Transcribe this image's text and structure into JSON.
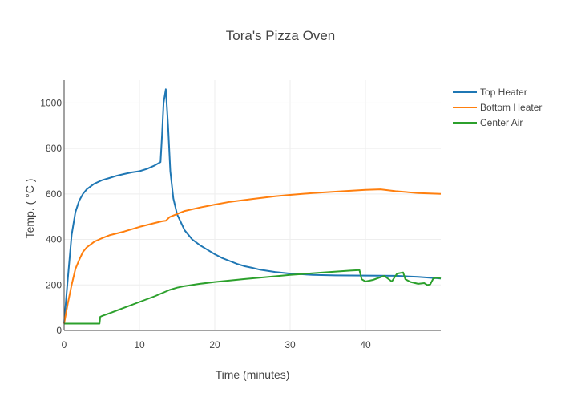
{
  "chart_data": {
    "type": "line",
    "title": "Tora's Pizza Oven",
    "xlabel": "Time (minutes)",
    "ylabel": "Temp.   ( °C )",
    "xlim": [
      0,
      50
    ],
    "ylim": [
      0,
      1100
    ],
    "x_ticks": [
      0,
      10,
      20,
      30,
      40
    ],
    "y_ticks": [
      0,
      200,
      400,
      600,
      800,
      1000
    ],
    "grid": true,
    "legend_position": "top-right",
    "series": [
      {
        "name": "Top Heater",
        "color": "#1f77b4",
        "x": [
          0,
          0.5,
          1,
          1.5,
          2,
          2.5,
          3,
          4,
          5,
          6,
          7,
          8,
          9,
          10,
          11,
          12,
          12.8,
          13.0,
          13.2,
          13.5,
          13.8,
          14.1,
          14.5,
          15,
          16,
          17,
          18,
          19,
          20,
          21,
          22,
          23,
          24,
          25,
          26,
          28,
          30,
          33,
          36,
          40,
          44,
          47,
          50
        ],
        "y": [
          30,
          230,
          420,
          520,
          570,
          600,
          620,
          645,
          660,
          670,
          680,
          688,
          695,
          700,
          710,
          725,
          740,
          860,
          1000,
          1060,
          900,
          700,
          580,
          510,
          440,
          400,
          375,
          355,
          335,
          318,
          305,
          292,
          282,
          275,
          267,
          257,
          250,
          244,
          242,
          241,
          240,
          235,
          228
        ]
      },
      {
        "name": "Bottom Heater",
        "color": "#ff7f0e",
        "x": [
          0,
          0.5,
          1,
          1.5,
          2,
          2.5,
          3,
          4,
          5,
          6,
          8,
          10,
          12,
          13,
          13.5,
          14,
          15,
          16,
          18,
          20,
          22,
          25,
          28,
          30,
          33,
          36,
          40,
          42,
          44,
          47,
          50
        ],
        "y": [
          30,
          120,
          200,
          270,
          310,
          345,
          365,
          390,
          405,
          418,
          435,
          455,
          472,
          480,
          482,
          498,
          512,
          525,
          540,
          553,
          565,
          578,
          590,
          596,
          604,
          610,
          618,
          620,
          612,
          604,
          600
        ]
      },
      {
        "name": "Center Air",
        "color": "#2ca02c",
        "x": [
          0,
          2,
          4.7,
          4.8,
          5,
          6,
          8,
          10,
          12,
          14,
          15,
          16,
          18,
          20,
          24,
          28,
          30,
          34,
          38,
          39.2,
          39.5,
          40,
          41,
          42.5,
          43.5,
          44.2,
          45,
          45.3,
          46,
          47,
          47.8,
          48.2,
          48.6,
          49,
          49.5,
          50
        ],
        "y": [
          30,
          30,
          30,
          60,
          63,
          75,
          100,
          125,
          150,
          178,
          188,
          195,
          205,
          213,
          226,
          238,
          244,
          254,
          263,
          265,
          225,
          215,
          222,
          240,
          215,
          250,
          255,
          225,
          213,
          205,
          208,
          200,
          202,
          228,
          232,
          228
        ]
      }
    ]
  }
}
